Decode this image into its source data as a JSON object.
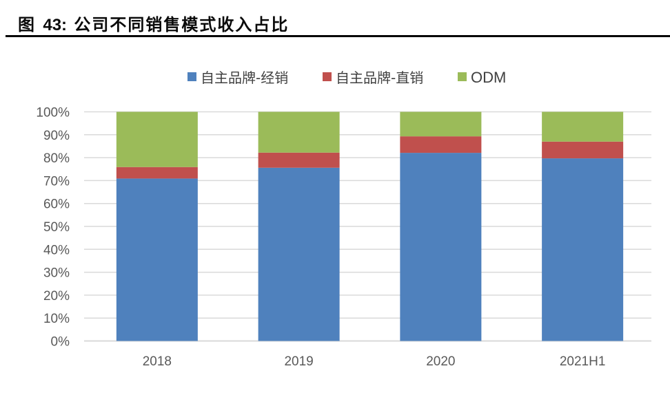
{
  "figure": {
    "label": "图",
    "number": "43:",
    "caption": "公司不同销售模式收入占比"
  },
  "chart_data": {
    "type": "bar",
    "stacked": true,
    "percent_stacked": true,
    "title": "图 43: 公司不同销售模式收入占比",
    "xlabel": "",
    "ylabel": "",
    "categories": [
      "2018",
      "2019",
      "2020",
      "2021H1"
    ],
    "series": [
      {
        "name": "自主品牌-经销",
        "color": "#4F81BD",
        "values": [
          70.9,
          75.6,
          82.1,
          79.7
        ]
      },
      {
        "name": "自主品牌-直销",
        "color": "#C0504D",
        "values": [
          5.0,
          6.6,
          7.2,
          7.3
        ]
      },
      {
        "name": "ODM",
        "color": "#9BBB59",
        "values": [
          24.1,
          17.8,
          10.7,
          13.0
        ]
      }
    ],
    "ylim": [
      0,
      100
    ],
    "yticks": [
      "0%",
      "10%",
      "20%",
      "30%",
      "40%",
      "50%",
      "60%",
      "70%",
      "80%",
      "90%",
      "100%"
    ],
    "grid": true,
    "legend_position": "top-center"
  }
}
